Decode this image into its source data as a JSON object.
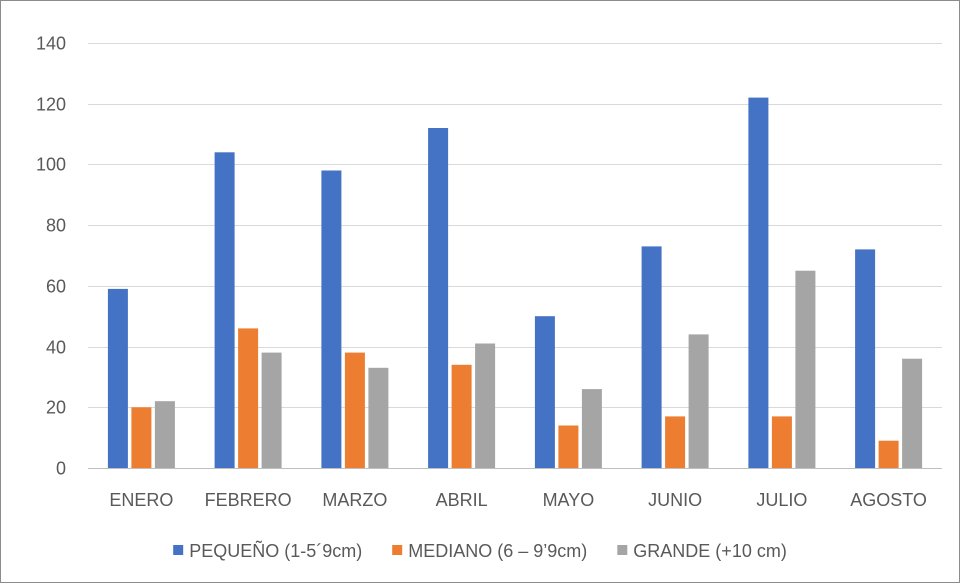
{
  "chart_data": {
    "type": "bar",
    "categories": [
      "ENERO",
      "FEBRERO",
      "MARZO",
      "ABRIL",
      "MAYO",
      "JUNIO",
      "JULIO",
      "AGOSTO"
    ],
    "series": [
      {
        "name": "PEQUEÑO (1-5´9cm)",
        "color": "#4472C4",
        "values": [
          59,
          104,
          98,
          112,
          50,
          73,
          122,
          72
        ]
      },
      {
        "name": "MEDIANO (6 – 9’9cm)",
        "color": "#ED7D31",
        "values": [
          20,
          46,
          38,
          34,
          14,
          17,
          17,
          9
        ]
      },
      {
        "name": "GRANDE (+10 cm)",
        "color": "#A5A5A5",
        "values": [
          22,
          38,
          33,
          41,
          26,
          44,
          65,
          36
        ]
      }
    ],
    "ylim": [
      0,
      140
    ],
    "yticks": [
      0,
      20,
      40,
      60,
      80,
      100,
      120,
      140
    ],
    "grid": true,
    "legend_position": "bottom"
  }
}
